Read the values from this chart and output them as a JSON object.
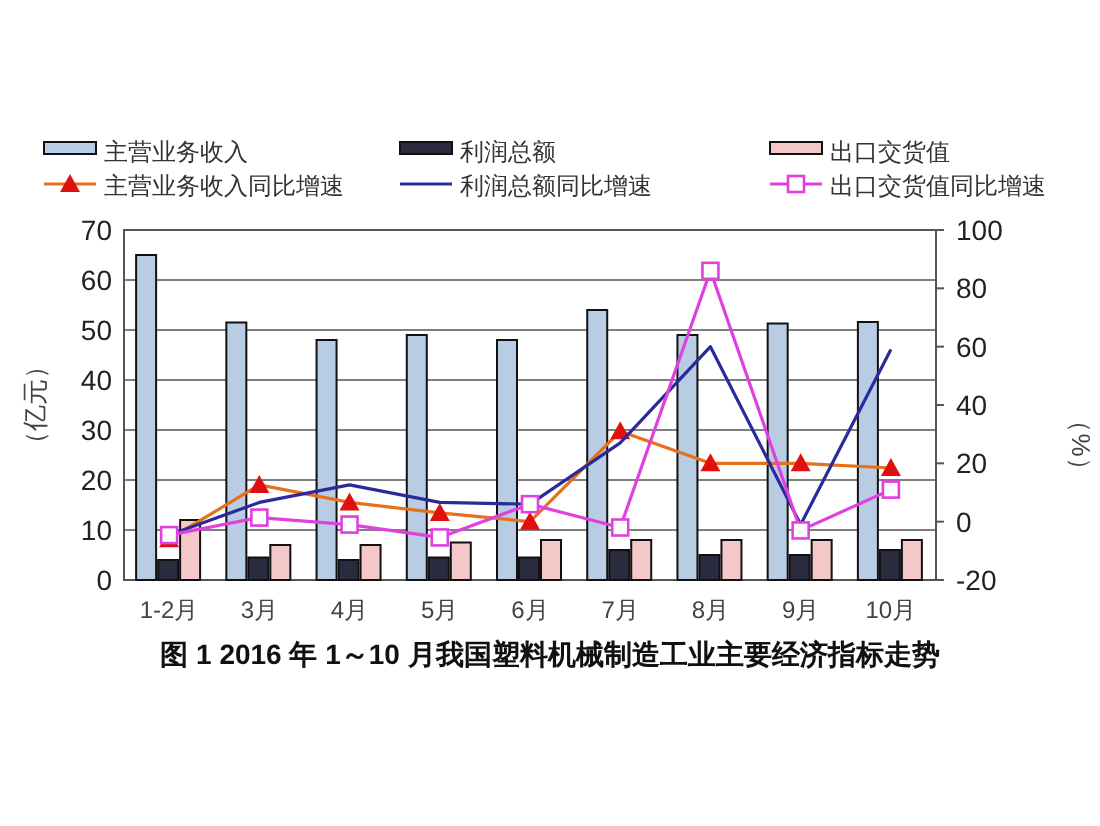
{
  "chart_data": {
    "type": "bar",
    "title": "图 1 2016 年 1～10 月我国塑料机械制造工业主要经济指标走势",
    "ylabel": "（亿元）",
    "y2label": "（%）",
    "categories": [
      "1-2月",
      "3月",
      "4月",
      "5月",
      "6月",
      "7月",
      "8月",
      "9月",
      "10月"
    ],
    "series": [
      {
        "name": "主营业务收入",
        "color": "#b8cce4",
        "values": [
          65,
          51.5,
          48,
          49,
          48,
          54,
          49,
          51.3,
          51.6
        ]
      },
      {
        "name": "利润总额",
        "color": "#2b2b40",
        "values": [
          4,
          4.5,
          4,
          4.5,
          4.5,
          6,
          5,
          5,
          6
        ]
      },
      {
        "name": "出口交货值",
        "color": "#f4c8c8",
        "values": [
          12,
          7,
          7,
          7.5,
          8,
          8,
          8,
          8,
          8
        ]
      },
      {
        "name": "主营业务收入同比增速",
        "type": "line",
        "axis": "y2",
        "color": "#e8701a",
        "marker": "triangle",
        "values": [
          -6,
          12.6,
          6.6,
          3,
          0,
          31,
          20,
          20,
          18.4
        ]
      },
      {
        "name": "利润总额同比增速",
        "type": "line",
        "axis": "y2",
        "color": "#2a2a9a",
        "marker": "none",
        "values": [
          -4.6,
          6.6,
          12.6,
          6.6,
          6,
          27,
          60,
          -1,
          59
        ]
      },
      {
        "name": "出口交货值同比增速",
        "type": "line",
        "axis": "y2",
        "color": "#e040e0",
        "marker": "square",
        "values": [
          -4.6,
          1.4,
          -1,
          -5.4,
          6,
          -2,
          86,
          -3,
          11
        ]
      }
    ],
    "ylim": [
      0,
      70
    ],
    "yticks": [
      0,
      10,
      20,
      30,
      40,
      50,
      60,
      70
    ],
    "y2lim": [
      -20,
      100
    ],
    "y2ticks": [
      -20,
      0,
      20,
      40,
      60,
      80,
      100
    ],
    "grid": "y",
    "legend": "top"
  }
}
